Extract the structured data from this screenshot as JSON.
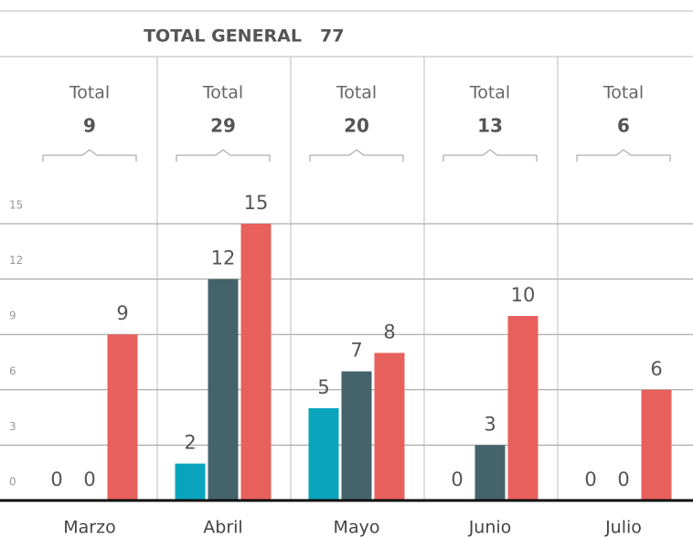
{
  "chart_data": {
    "type": "bar",
    "title": "TOTAL GENERAL",
    "total_general": 77,
    "total_label": "Total",
    "totals": [
      9,
      29,
      20,
      13,
      6
    ],
    "categories": [
      "Marzo",
      "Abril",
      "Mayo",
      "Junio",
      "Julio"
    ],
    "series": [
      {
        "color": "#0aa5bc",
        "values": [
          0,
          2,
          5,
          0,
          0
        ]
      },
      {
        "color": "#45636b",
        "values": [
          0,
          12,
          7,
          3,
          0
        ]
      },
      {
        "color": "#e8605c",
        "values": [
          9,
          15,
          8,
          10,
          6
        ]
      }
    ],
    "ylim": [
      0,
      15
    ],
    "yticks": [
      0,
      3,
      6,
      9,
      12,
      15
    ],
    "grid": true
  }
}
